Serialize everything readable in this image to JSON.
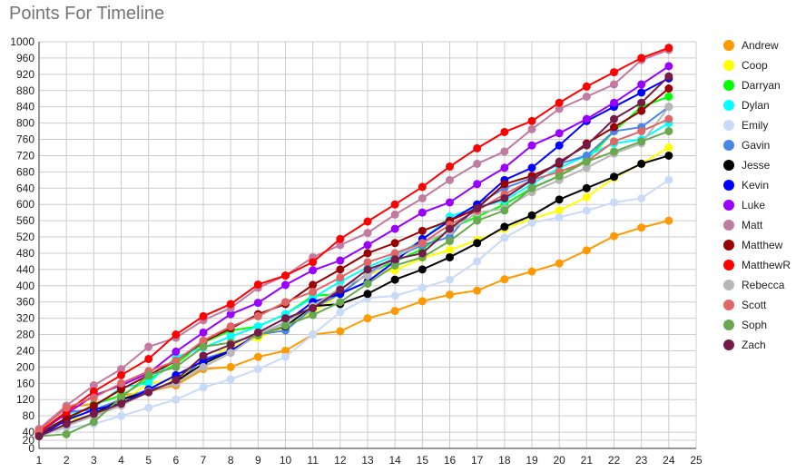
{
  "chart_data": {
    "type": "line",
    "title": "Points For Timeline",
    "xlabel": "",
    "ylabel": "",
    "x": [
      1,
      2,
      3,
      4,
      5,
      6,
      7,
      8,
      9,
      10,
      11,
      12,
      13,
      14,
      15,
      16,
      17,
      18,
      19,
      20,
      21,
      22,
      23,
      24
    ],
    "xlim": [
      1,
      25
    ],
    "ylim": [
      0,
      1000
    ],
    "xticks": [
      1,
      2,
      3,
      4,
      5,
      6,
      7,
      8,
      9,
      10,
      11,
      12,
      13,
      14,
      15,
      16,
      17,
      18,
      19,
      20,
      21,
      22,
      23,
      24,
      25
    ],
    "yticks": [
      0,
      20,
      40,
      80,
      120,
      160,
      200,
      240,
      280,
      320,
      360,
      400,
      440,
      480,
      520,
      560,
      600,
      640,
      680,
      720,
      760,
      800,
      840,
      880,
      920,
      960,
      1000
    ],
    "grid": true,
    "legend": "right",
    "series": [
      {
        "name": "Andrew",
        "color": "#ff9900",
        "values": [
          45,
          100,
          110,
          130,
          140,
          155,
          195,
          200,
          225,
          240,
          280,
          288,
          320,
          338,
          362,
          378,
          388,
          416,
          435,
          455,
          487,
          522,
          543,
          560
        ]
      },
      {
        "name": "Coop",
        "color": "#ffff00",
        "values": [
          38,
          70,
          80,
          115,
          160,
          170,
          215,
          250,
          272,
          300,
          335,
          380,
          430,
          438,
          468,
          488,
          512,
          540,
          565,
          585,
          618,
          665,
          700,
          740
        ]
      },
      {
        "name": "Darryan",
        "color": "#00ff00",
        "values": [
          45,
          70,
          108,
          130,
          170,
          208,
          260,
          290,
          300,
          330,
          375,
          380,
          430,
          460,
          490,
          540,
          570,
          600,
          640,
          670,
          710,
          780,
          840,
          865
        ]
      },
      {
        "name": "Dylan",
        "color": "#00ffff",
        "values": [
          40,
          85,
          100,
          150,
          160,
          225,
          248,
          275,
          300,
          330,
          370,
          410,
          445,
          475,
          512,
          570,
          593,
          610,
          650,
          690,
          720,
          750,
          760,
          800
        ]
      },
      {
        "name": "Emily",
        "color": "#c9daf8",
        "values": [
          30,
          50,
          60,
          80,
          100,
          120,
          150,
          170,
          195,
          225,
          280,
          335,
          370,
          375,
          395,
          415,
          460,
          518,
          555,
          568,
          585,
          605,
          615,
          660
        ]
      },
      {
        "name": "Gavin",
        "color": "#4a86e8",
        "values": [
          35,
          90,
          95,
          120,
          145,
          160,
          220,
          240,
          280,
          290,
          345,
          380,
          430,
          470,
          500,
          520,
          600,
          640,
          665,
          700,
          720,
          780,
          790,
          840
        ]
      },
      {
        "name": "Jesse",
        "color": "#000000",
        "values": [
          30,
          60,
          85,
          120,
          140,
          165,
          208,
          240,
          280,
          300,
          350,
          355,
          380,
          415,
          440,
          470,
          505,
          545,
          573,
          612,
          640,
          668,
          700,
          720
        ]
      },
      {
        "name": "Kevin",
        "color": "#0000ff",
        "values": [
          30,
          70,
          95,
          110,
          145,
          180,
          215,
          240,
          280,
          310,
          360,
          380,
          410,
          460,
          515,
          560,
          600,
          660,
          690,
          745,
          805,
          840,
          875,
          910
        ]
      },
      {
        "name": "Luke",
        "color": "#9900ff",
        "values": [
          40,
          85,
          130,
          155,
          185,
          238,
          285,
          330,
          358,
          402,
          438,
          462,
          500,
          540,
          580,
          605,
          650,
          690,
          745,
          775,
          810,
          850,
          895,
          940
        ]
      },
      {
        "name": "Matt",
        "color": "#c27ba0",
        "values": [
          48,
          105,
          155,
          195,
          250,
          272,
          315,
          345,
          395,
          425,
          470,
          500,
          530,
          575,
          615,
          660,
          700,
          730,
          785,
          835,
          865,
          895,
          955,
          980
        ]
      },
      {
        "name": "Matthew",
        "color": "#990000",
        "values": [
          35,
          75,
          105,
          145,
          180,
          215,
          262,
          295,
          330,
          355,
          402,
          440,
          480,
          505,
          535,
          560,
          590,
          650,
          670,
          700,
          750,
          790,
          830,
          885
        ]
      },
      {
        "name": "MatthewR",
        "color": "#ff0000",
        "values": [
          40,
          90,
          140,
          180,
          220,
          280,
          325,
          355,
          403,
          425,
          458,
          515,
          558,
          600,
          643,
          693,
          738,
          778,
          805,
          850,
          890,
          925,
          960,
          985
        ]
      },
      {
        "name": "Rebecca",
        "color": "#b7b7b7",
        "values": [
          30,
          55,
          80,
          105,
          140,
          160,
          200,
          235,
          280,
          310,
          350,
          395,
          425,
          470,
          505,
          535,
          580,
          590,
          630,
          660,
          690,
          725,
          750,
          840
        ]
      },
      {
        "name": "Scott",
        "color": "#e06666",
        "values": [
          45,
          100,
          125,
          160,
          190,
          215,
          265,
          300,
          325,
          360,
          385,
          420,
          458,
          480,
          505,
          550,
          585,
          625,
          660,
          680,
          705,
          755,
          780,
          810
        ]
      },
      {
        "name": "Soph",
        "color": "#6aa84f",
        "values": [
          30,
          35,
          65,
          125,
          180,
          200,
          250,
          260,
          278,
          302,
          328,
          360,
          405,
          450,
          470,
          510,
          560,
          585,
          640,
          670,
          705,
          730,
          755,
          780
        ]
      },
      {
        "name": "Zach",
        "color": "#741b47",
        "values": [
          30,
          60,
          85,
          110,
          138,
          168,
          228,
          255,
          285,
          320,
          345,
          390,
          440,
          465,
          480,
          540,
          590,
          615,
          660,
          705,
          745,
          810,
          850,
          915
        ]
      }
    ]
  }
}
